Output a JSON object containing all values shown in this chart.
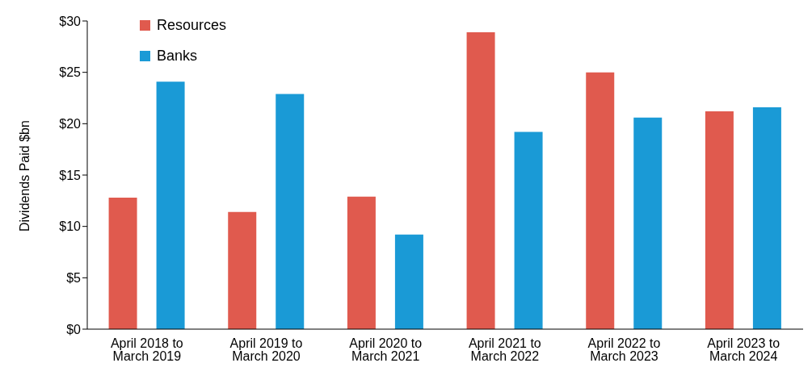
{
  "chart_data": {
    "type": "bar",
    "ylabel": "Dividends Paid $bn",
    "categories": [
      "April 2018 to March 2019",
      "April 2019 to March 2020",
      "April 2020 to March 2021",
      "April 2021 to March 2022",
      "April 2022 to March 2023",
      "April 2023 to March 2024"
    ],
    "series": [
      {
        "name": "Resources",
        "color": "#e05a4e",
        "values": [
          12.8,
          11.4,
          12.9,
          28.9,
          25.0,
          21.2
        ]
      },
      {
        "name": "Banks",
        "color": "#1a9ad6",
        "values": [
          24.1,
          22.9,
          9.2,
          19.2,
          20.6,
          21.6
        ]
      }
    ],
    "ylim": [
      0,
      30
    ],
    "yticks": [
      {
        "value": 0,
        "label": "$0"
      },
      {
        "value": 5,
        "label": "$5"
      },
      {
        "value": 10,
        "label": "$10"
      },
      {
        "value": 15,
        "label": "$15"
      },
      {
        "value": 20,
        "label": "$20"
      },
      {
        "value": 25,
        "label": "$25"
      },
      {
        "value": 30,
        "label": "$30"
      }
    ],
    "grid": false,
    "legend": "top left"
  }
}
